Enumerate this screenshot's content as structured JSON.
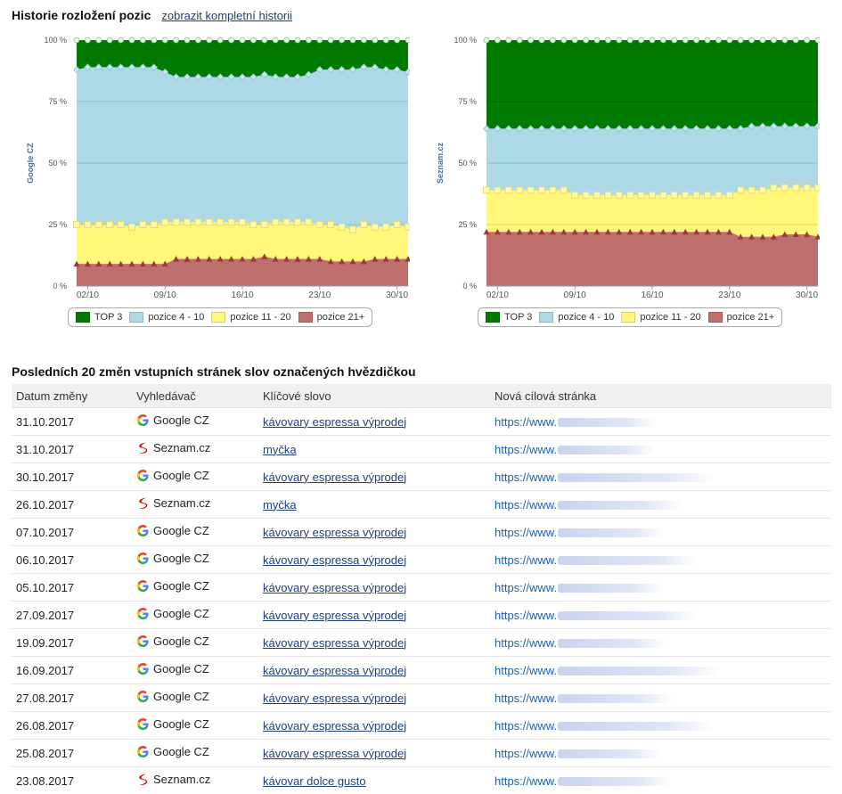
{
  "header": {
    "title": "Historie rozložení pozic",
    "link": "zobrazit kompletní historii"
  },
  "charts": [
    {
      "ylabel": "Google CZ",
      "yticks": [
        "100 %",
        "75 %",
        "50 %",
        "25 %",
        "0 %"
      ],
      "xticks": [
        "02/10",
        "09/10",
        "16/10",
        "23/10",
        "30/10"
      ],
      "chart_data": {
        "type": "area",
        "ylim": [
          0,
          100
        ],
        "x": [
          "01/10",
          "02/10",
          "03/10",
          "04/10",
          "05/10",
          "06/10",
          "07/10",
          "08/10",
          "09/10",
          "10/10",
          "11/10",
          "12/10",
          "13/10",
          "14/10",
          "15/10",
          "16/10",
          "17/10",
          "18/10",
          "19/10",
          "20/10",
          "21/10",
          "22/10",
          "23/10",
          "24/10",
          "25/10",
          "26/10",
          "27/10",
          "28/10",
          "29/10",
          "30/10",
          "31/10"
        ],
        "series": [
          {
            "name": "pozice 21+",
            "values": [
              9,
              9,
              9,
              9,
              9,
              9,
              9,
              9,
              9,
              11,
              11,
              11,
              11,
              11,
              11,
              11,
              11,
              12,
              11,
              11,
              11,
              11,
              11,
              10,
              10,
              10,
              10,
              11,
              11,
              11,
              11
            ]
          },
          {
            "name": "pozice 11 - 20",
            "values": [
              25,
              25,
              25,
              25,
              25,
              24,
              25,
              25,
              26,
              26,
              26,
              26,
              26,
              26,
              26,
              26,
              25,
              25,
              26,
              26,
              26,
              26,
              25,
              25,
              24,
              23,
              25,
              24,
              24,
              25,
              24
            ]
          },
          {
            "name": "pozice 4 - 10",
            "values": [
              88,
              89,
              89,
              89,
              89,
              89,
              89,
              89,
              87,
              85,
              85,
              85,
              85,
              85,
              85,
              85,
              85,
              86,
              85,
              85,
              85,
              86,
              88,
              88,
              88,
              88,
              89,
              89,
              88,
              88,
              87
            ]
          },
          {
            "name": "TOP 3",
            "values": [
              100,
              100,
              100,
              100,
              100,
              100,
              100,
              100,
              100,
              100,
              100,
              100,
              100,
              100,
              100,
              100,
              100,
              100,
              100,
              100,
              100,
              100,
              100,
              100,
              100,
              100,
              100,
              100,
              100,
              100,
              100
            ]
          }
        ]
      }
    },
    {
      "ylabel": "Seznam.cz",
      "yticks": [
        "100 %",
        "75 %",
        "50 %",
        "25 %",
        "0 %"
      ],
      "xticks": [
        "02/10",
        "09/10",
        "16/10",
        "23/10",
        "30/10"
      ],
      "chart_data": {
        "type": "area",
        "ylim": [
          0,
          100
        ],
        "x": [
          "01/10",
          "02/10",
          "03/10",
          "04/10",
          "05/10",
          "06/10",
          "07/10",
          "08/10",
          "09/10",
          "10/10",
          "11/10",
          "12/10",
          "13/10",
          "14/10",
          "15/10",
          "16/10",
          "17/10",
          "18/10",
          "19/10",
          "20/10",
          "21/10",
          "22/10",
          "23/10",
          "24/10",
          "25/10",
          "26/10",
          "27/10",
          "28/10",
          "29/10",
          "30/10",
          "31/10"
        ],
        "series": [
          {
            "name": "pozice 21+",
            "values": [
              22,
              22,
              22,
              22,
              22,
              22,
              22,
              22,
              22,
              22,
              22,
              22,
              22,
              22,
              22,
              22,
              22,
              22,
              22,
              22,
              22,
              22,
              22,
              20,
              20,
              20,
              20,
              21,
              21,
              21,
              20
            ]
          },
          {
            "name": "pozice 11 - 20",
            "values": [
              39,
              39,
              39,
              39,
              39,
              39,
              39,
              39,
              37,
              37,
              37,
              37,
              37,
              37,
              37,
              37,
              37,
              37,
              37,
              37,
              37,
              37,
              37,
              39,
              39,
              39,
              40,
              40,
              40,
              40,
              40
            ]
          },
          {
            "name": "pozice 4 - 10",
            "values": [
              64,
              64,
              64,
              64,
              64,
              64,
              64,
              64,
              64,
              64,
              64,
              64,
              64,
              64,
              64,
              64,
              64,
              64,
              64,
              64,
              64,
              64,
              64,
              64,
              65,
              65,
              65,
              65,
              65,
              65,
              65
            ]
          },
          {
            "name": "TOP 3",
            "values": [
              100,
              100,
              100,
              100,
              100,
              100,
              100,
              100,
              100,
              100,
              100,
              100,
              100,
              100,
              100,
              100,
              100,
              100,
              100,
              100,
              100,
              100,
              100,
              100,
              100,
              100,
              100,
              100,
              100,
              100,
              100
            ]
          }
        ]
      }
    }
  ],
  "legend": [
    "TOP 3",
    "pozice 4 - 10",
    "pozice 11 - 20",
    "pozice 21+"
  ],
  "colors": {
    "top3": "#007a00",
    "pos4_10": "#add8e6",
    "pos11_20": "#fff67a",
    "pos21": "#bf6e6e"
  },
  "section_title": "Posledních 20 změn vstupních stránek slov označených hvězdičkou",
  "table": {
    "columns": [
      "Datum změny",
      "Vyhledávač",
      "Klíčové slovo",
      "Nová cílová stránka"
    ],
    "rows": [
      {
        "date": "31.10.2017",
        "engine": "Google CZ",
        "icon": "google-icon",
        "keyword": "kávovary espressa výprodej",
        "url": "https://www."
      },
      {
        "date": "31.10.2017",
        "engine": "Seznam.cz",
        "icon": "seznam-icon",
        "keyword": "myčka",
        "url": "https://www."
      },
      {
        "date": "30.10.2017",
        "engine": "Google CZ",
        "icon": "google-icon",
        "keyword": "kávovary espressa výprodej",
        "url": "https://www."
      },
      {
        "date": "26.10.2017",
        "engine": "Seznam.cz",
        "icon": "seznam-icon",
        "keyword": "myčka",
        "url": "https://www."
      },
      {
        "date": "07.10.2017",
        "engine": "Google CZ",
        "icon": "google-icon",
        "keyword": "kávovary espressa výprodej",
        "url": "https://www."
      },
      {
        "date": "06.10.2017",
        "engine": "Google CZ",
        "icon": "google-icon",
        "keyword": "kávovary espressa výprodej",
        "url": "https://www."
      },
      {
        "date": "05.10.2017",
        "engine": "Google CZ",
        "icon": "google-icon",
        "keyword": "kávovary espressa výprodej",
        "url": "https://www."
      },
      {
        "date": "27.09.2017",
        "engine": "Google CZ",
        "icon": "google-icon",
        "keyword": "kávovary espressa výprodej",
        "url": "https://www."
      },
      {
        "date": "19.09.2017",
        "engine": "Google CZ",
        "icon": "google-icon",
        "keyword": "kávovary espressa výprodej",
        "url": "https://www."
      },
      {
        "date": "16.09.2017",
        "engine": "Google CZ",
        "icon": "google-icon",
        "keyword": "kávovary espressa výprodej",
        "url": "https://www."
      },
      {
        "date": "27.08.2017",
        "engine": "Google CZ",
        "icon": "google-icon",
        "keyword": "kávovary espressa výprodej",
        "url": "https://www."
      },
      {
        "date": "26.08.2017",
        "engine": "Google CZ",
        "icon": "google-icon",
        "keyword": "kávovary espressa výprodej",
        "url": "https://www."
      },
      {
        "date": "25.08.2017",
        "engine": "Google CZ",
        "icon": "google-icon",
        "keyword": "kávovary espressa výprodej",
        "url": "https://www."
      },
      {
        "date": "23.08.2017",
        "engine": "Seznam.cz",
        "icon": "seznam-icon",
        "keyword": "kávovar dolce gusto",
        "url": "https://www."
      }
    ]
  }
}
